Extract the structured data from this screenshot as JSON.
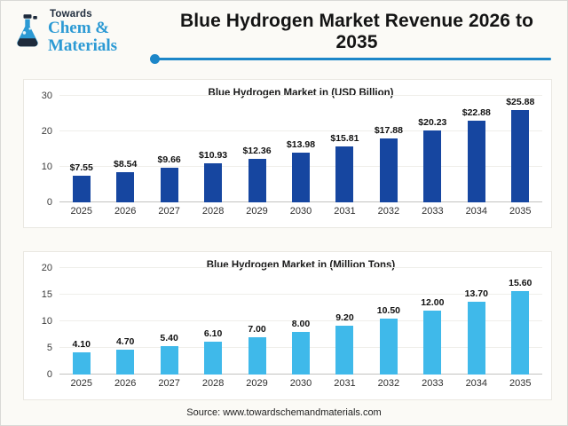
{
  "header": {
    "logo": {
      "line1": "Towards",
      "line2": "Chem & Materials"
    },
    "title": "Blue Hydrogen Market Revenue 2026 to 2035"
  },
  "footer": {
    "source": "Source: www.towardschemandmaterials.com"
  },
  "colors": {
    "accent_line": "#1c86c8",
    "logo_navy": "#1e2b3c",
    "logo_blue": "#2c9ad4",
    "bar_dark_blue": "#1646a0",
    "bar_light_blue": "#3fb9ea"
  },
  "chart_data": [
    {
      "type": "bar",
      "title": "Blue Hydrogen Market in (USD Billion)",
      "categories": [
        "2025",
        "2026",
        "2027",
        "2028",
        "2029",
        "2030",
        "2031",
        "2032",
        "2033",
        "2034",
        "2035"
      ],
      "values": [
        7.55,
        8.54,
        9.66,
        10.93,
        12.36,
        13.98,
        15.81,
        17.88,
        20.23,
        22.88,
        25.88
      ],
      "value_labels": [
        "$7.55",
        "$8.54",
        "$9.66",
        "$10.93",
        "$12.36",
        "$13.98",
        "$15.81",
        "$17.88",
        "$20.23",
        "$22.88",
        "$25.88"
      ],
      "xlabel": "",
      "ylabel": "",
      "ylim": [
        0,
        30
      ],
      "yticks": [
        0,
        10,
        20,
        30
      ],
      "grid": true,
      "legend": false,
      "bar_color": "#1646a0"
    },
    {
      "type": "bar",
      "title": "Blue Hydrogen Market in (Million Tons)",
      "categories": [
        "2025",
        "2026",
        "2027",
        "2028",
        "2029",
        "2030",
        "2031",
        "2032",
        "2033",
        "2034",
        "2035"
      ],
      "values": [
        4.1,
        4.7,
        5.4,
        6.1,
        7.0,
        8.0,
        9.2,
        10.5,
        12.0,
        13.7,
        15.6
      ],
      "value_labels": [
        "4.10",
        "4.70",
        "5.40",
        "6.10",
        "7.00",
        "8.00",
        "9.20",
        "10.50",
        "12.00",
        "13.70",
        "15.60"
      ],
      "xlabel": "",
      "ylabel": "",
      "ylim": [
        0,
        20
      ],
      "yticks": [
        0,
        5,
        10,
        15,
        20
      ],
      "grid": true,
      "legend": false,
      "bar_color": "#3fb9ea"
    }
  ]
}
